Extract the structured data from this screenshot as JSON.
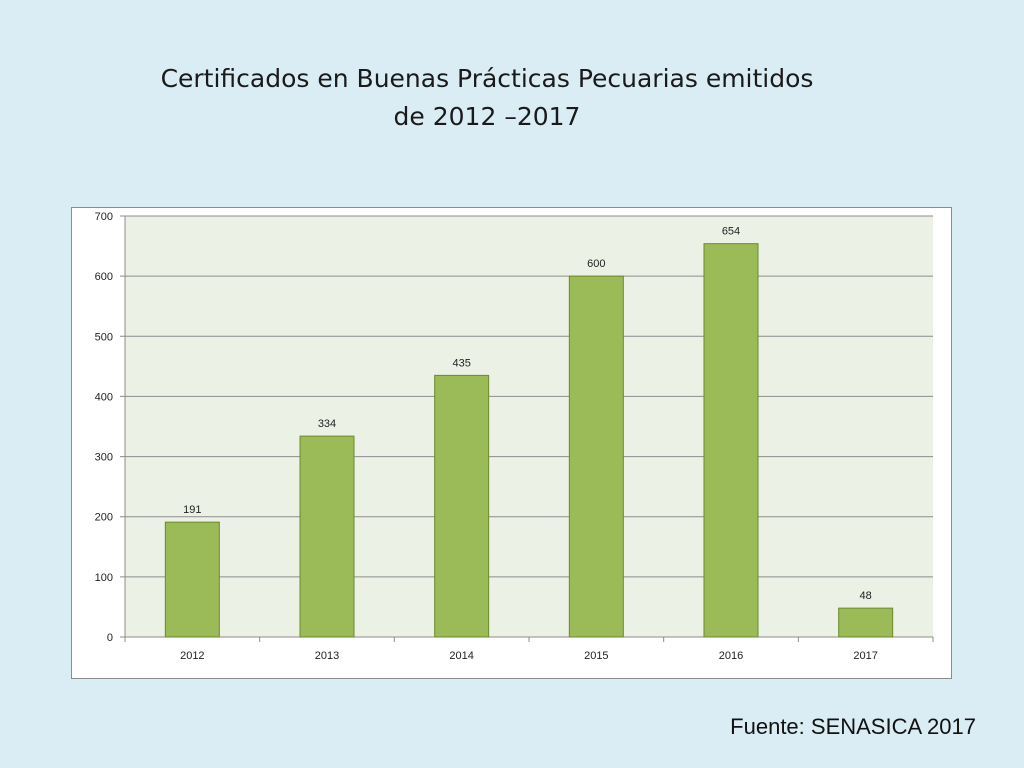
{
  "slide": {
    "title_line1": "Certificados en Buenas Prácticas Pecuarias emitidos",
    "title_line2": "de 2012 –2017",
    "source": "Fuente: SENASICA 2017"
  },
  "colors": {
    "background": "#daedf4",
    "plot_area": "#ecf1e6",
    "bar_fill": "#9bbb59",
    "bar_stroke": "#6a8a2e",
    "gridline": "#8c8c8c"
  },
  "chart_data": {
    "type": "bar",
    "categories": [
      "2012",
      "2013",
      "2014",
      "2015",
      "2016",
      "2017"
    ],
    "values": [
      191,
      334,
      435,
      600,
      654,
      48
    ],
    "data_labels": [
      "191",
      "334",
      "435",
      "600",
      "654",
      "48"
    ],
    "title": "",
    "xlabel": "",
    "ylabel": "",
    "ylim": [
      0,
      700
    ],
    "yticks": [
      0,
      100,
      200,
      300,
      400,
      500,
      600,
      700
    ],
    "grid": true,
    "legend": "none"
  }
}
